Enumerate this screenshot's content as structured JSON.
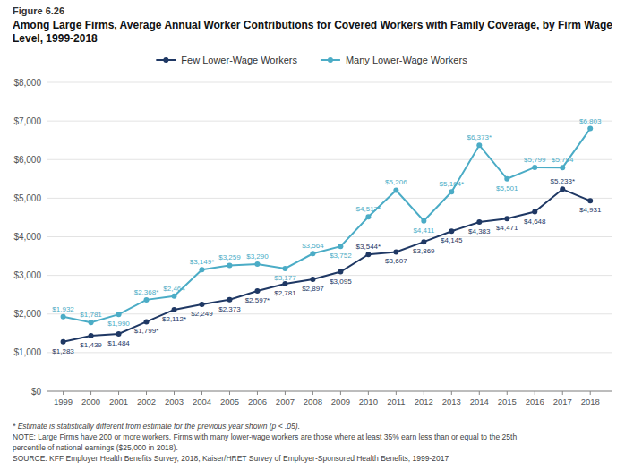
{
  "chart_data": {
    "type": "line",
    "subtitle": "Figure 6.26",
    "title": "Among Large Firms, Average Annual Worker Contributions for Covered Workers with Family Coverage, by Firm Wage Level, 1999-2018",
    "x": [
      1999,
      2000,
      2001,
      2002,
      2003,
      2004,
      2005,
      2006,
      2007,
      2008,
      2009,
      2010,
      2011,
      2012,
      2013,
      2014,
      2015,
      2016,
      2017,
      2018
    ],
    "series": [
      {
        "name": "Few Lower-Wage Workers",
        "color": "#1f3864",
        "values": [
          1283,
          1439,
          1484,
          1799,
          2112,
          2249,
          2373,
          2597,
          2781,
          2897,
          3095,
          3544,
          3607,
          3869,
          4145,
          4383,
          4471,
          4648,
          5233,
          4931
        ],
        "value_labels": [
          "$1,283",
          "$1,439",
          "$1,484",
          "$1,799*",
          "$2,112*",
          "$2,249",
          "$2,373",
          "$2,597*",
          "$2,781",
          "$2,897",
          "$3,095",
          "$3,544*",
          "$3,607",
          "$3,869",
          "$4,145",
          "$4,383",
          "$4,471",
          "$4,648",
          "$5,233*",
          "$4,931"
        ]
      },
      {
        "name": "Many Lower-Wage Workers",
        "color": "#4bacc6",
        "values": [
          1932,
          1781,
          1990,
          2368,
          2464,
          3149,
          3259,
          3290,
          3177,
          3564,
          3752,
          4517,
          5206,
          4411,
          5164,
          6373,
          5501,
          5799,
          5794,
          6803
        ],
        "value_labels": [
          "$1,932",
          "$1,781",
          "$1,990",
          "$2,368*",
          "$2,464",
          "$3,149*",
          "$3,259",
          "$3,290",
          "$3,177",
          "$3,564",
          "$3,752",
          "$4,517*",
          "$5,206",
          "$4,411",
          "$5,164*",
          "$6,373*",
          "$5,501",
          "$5,799",
          "$5,794",
          "$6,803"
        ]
      }
    ],
    "xlim": [
      1998.4,
      2018.8
    ],
    "xticks": [
      1999,
      2000,
      2001,
      2002,
      2003,
      2004,
      2005,
      2006,
      2007,
      2008,
      2009,
      2010,
      2011,
      2012,
      2013,
      2014,
      2015,
      2016,
      2017,
      2018
    ],
    "ylim": [
      0,
      8000
    ],
    "yticks": [
      {
        "value": 0,
        "label": "$0"
      },
      {
        "value": 1000,
        "label": "$1,000"
      },
      {
        "value": 2000,
        "label": "$2,000"
      },
      {
        "value": 3000,
        "label": "$3,000"
      },
      {
        "value": 4000,
        "label": "$4,000"
      },
      {
        "value": 5000,
        "label": "$5,000"
      },
      {
        "value": 6000,
        "label": "$6,000"
      },
      {
        "value": 7000,
        "label": "$7,000"
      },
      {
        "value": 8000,
        "label": "$8,000"
      }
    ],
    "grid": true,
    "legend": "top",
    "marker": "circle",
    "line_style": "solid",
    "data_labels": true,
    "annotations": [
      "* Estimate is statistically different from estimate for the previous year shown (p < .05).",
      "NOTE: Large Firms have 200 or more workers. Firms with many lower-wage workers are those where at least 35% earn less than or equal to the 25th",
      "percentile of national earnings ($25,000 in 2018).",
      "SOURCE: KFF Employer Health Benefits Survey, 2018; Kaiser/HRET Survey of Employer-Sponsored Health Benefits, 1999-2017"
    ]
  }
}
